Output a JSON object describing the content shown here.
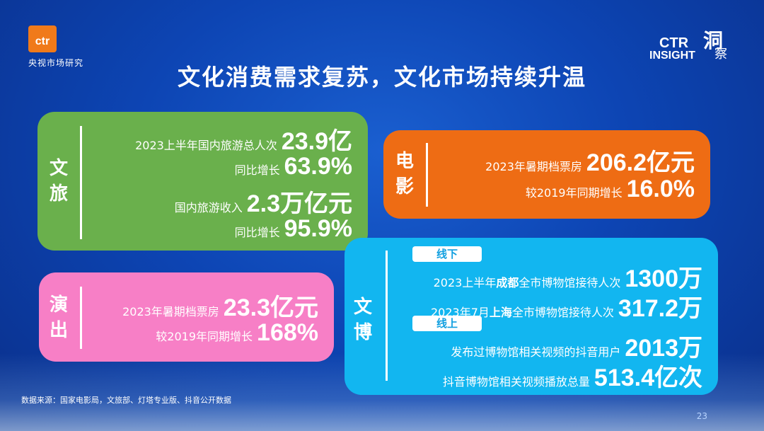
{
  "logo": {
    "brand": "ctr",
    "sub": "央视市场研究"
  },
  "insight": {
    "ctr": "CTR",
    "word": "INSIGHT",
    "dong": "洞",
    "cha": "察"
  },
  "title": "文化消费需求复苏，文化市场持续升温",
  "wenlv": {
    "label": "文旅",
    "rows": [
      {
        "label": "2023上半年国内旅游总人次",
        "value": "23.9亿"
      },
      {
        "label": "同比增长",
        "value": "63.9%"
      },
      {
        "label": "国内旅游收入",
        "value": "2.3万亿元"
      },
      {
        "label": "同比增长",
        "value": "95.9%"
      }
    ]
  },
  "dianying": {
    "label": "电影",
    "rows": [
      {
        "label": "2023年暑期档票房",
        "value": "206.2亿元"
      },
      {
        "label": "较2019年同期增长",
        "value": "16.0%"
      }
    ]
  },
  "yanchu": {
    "label": "演出",
    "rows": [
      {
        "label": "2023年暑期档票房",
        "value": "23.3亿元"
      },
      {
        "label": "较2019年同期增长",
        "value": "168%"
      }
    ]
  },
  "wenbo": {
    "label": "文博",
    "tag_offline": "线下",
    "tag_online": "线上",
    "offline": [
      {
        "pre": "2023上半年",
        "hl": "成都",
        "post": "全市博物馆接待人次",
        "value": "1300万"
      },
      {
        "pre": "2023年7月",
        "hl": "上海",
        "post": "全市博物馆接待人次",
        "value": "317.2万"
      }
    ],
    "online": [
      {
        "label": "发布过博物馆相关视频的抖音用户",
        "value": "2013万"
      },
      {
        "label": "抖音博物馆相关视频播放总量",
        "value": "513.4亿次"
      }
    ]
  },
  "source": "数据来源：国家电影局，文旅部、灯塔专业版、抖音公开数据",
  "page_number": "23"
}
